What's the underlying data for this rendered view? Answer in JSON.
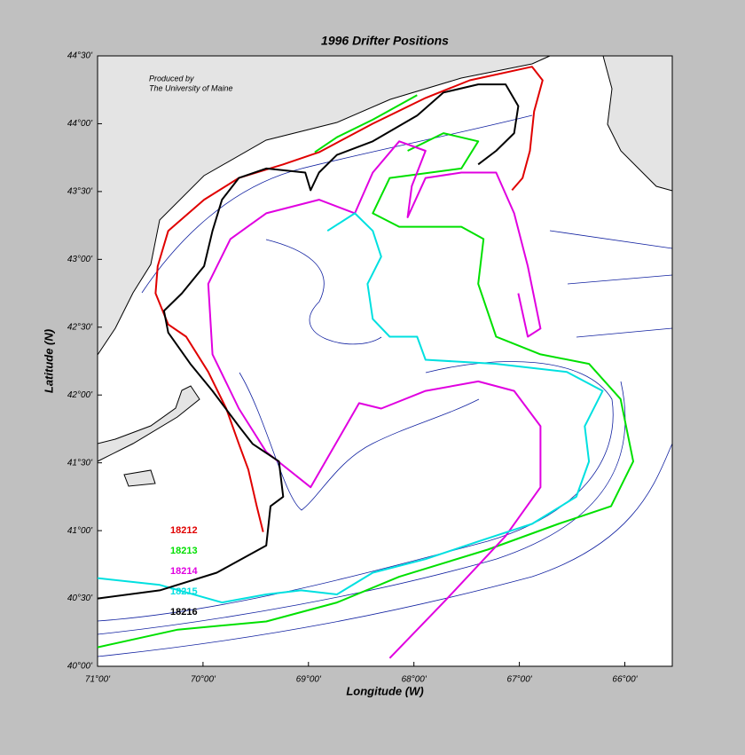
{
  "chart_data": {
    "type": "line",
    "title": "1996 Drifter Positions",
    "x_label": "Longitude (W)",
    "y_label": "Latitude (N)",
    "annotation": [
      "Produced by",
      "The University of Maine"
    ],
    "xlim": [
      71,
      65.55
    ],
    "ylim": [
      40,
      44.5
    ],
    "xticks": [
      {
        "value": 71,
        "label": "71°00'"
      },
      {
        "value": 70,
        "label": "70°00'"
      },
      {
        "value": 69,
        "label": "69°00'"
      },
      {
        "value": 68,
        "label": "68°00'"
      },
      {
        "value": 67,
        "label": "67°00'"
      },
      {
        "value": 66,
        "label": "66°00'"
      }
    ],
    "yticks": [
      {
        "value": 40,
        "label": "40°00'"
      },
      {
        "value": 40.5,
        "label": "40°30'"
      },
      {
        "value": 41,
        "label": "41°00'"
      },
      {
        "value": 41.5,
        "label": "41°30'"
      },
      {
        "value": 42,
        "label": "42°00'"
      },
      {
        "value": 42.5,
        "label": "42°30'"
      },
      {
        "value": 43,
        "label": "43°00'"
      },
      {
        "value": 43.5,
        "label": "43°30'"
      },
      {
        "value": 44,
        "label": "44°00'"
      },
      {
        "value": 44.5,
        "label": "44°30'"
      }
    ],
    "series": [
      {
        "name": "18212",
        "color": "#e00000",
        "x": [
          69.43,
          69.49,
          69.57,
          69.66,
          69.78,
          69.95,
          70.16,
          70.33,
          70.45,
          70.43,
          70.33,
          69.99,
          69.66,
          69.24,
          68.9,
          68.39,
          67.89,
          67.47,
          66.88,
          66.78,
          66.86,
          66.9,
          66.97,
          67.07
        ],
        "values": [
          40.99,
          41.18,
          41.45,
          41.64,
          41.9,
          42.17,
          42.43,
          42.52,
          42.75,
          42.95,
          43.21,
          43.44,
          43.6,
          43.7,
          43.79,
          44.0,
          44.19,
          44.32,
          44.42,
          44.32,
          44.09,
          43.8,
          43.6,
          43.51
        ]
      },
      {
        "name": "18213",
        "color": "#00e000",
        "x": [
          67.97,
          68.39,
          68.73,
          68.94,
          null,
          68.06,
          67.72,
          67.39,
          67.55,
          68.23,
          68.39,
          68.14,
          67.55,
          67.34,
          67.39,
          67.22,
          66.8,
          66.34,
          66.04,
          65.92,
          66.13,
          66.63,
          67.3,
          68.14,
          68.73,
          69.4,
          70.24,
          71.0
        ],
        "values": [
          44.21,
          44.03,
          43.9,
          43.79,
          null,
          43.8,
          43.93,
          43.87,
          43.67,
          43.6,
          43.34,
          43.24,
          43.24,
          43.15,
          42.82,
          42.43,
          42.3,
          42.23,
          41.97,
          41.51,
          41.18,
          41.05,
          40.86,
          40.66,
          40.47,
          40.33,
          40.27,
          40.14
        ]
      },
      {
        "name": "18214",
        "color": "#e000e0",
        "x": [
          68.23,
          67.72,
          67.13,
          66.8,
          66.8,
          67.05,
          67.39,
          67.89,
          68.31,
          68.52,
          68.98,
          69.4,
          69.66,
          69.91,
          69.95,
          69.74,
          69.4,
          68.9,
          68.56,
          68.39,
          68.14,
          67.89,
          68.02,
          68.06,
          67.89,
          67.55,
          67.22,
          67.05,
          66.92,
          66.8,
          66.92,
          67.01
        ],
        "values": [
          40.06,
          40.47,
          40.96,
          41.32,
          41.77,
          42.03,
          42.1,
          42.03,
          41.9,
          41.94,
          41.32,
          41.58,
          41.9,
          42.3,
          42.82,
          43.15,
          43.34,
          43.44,
          43.34,
          43.64,
          43.87,
          43.8,
          43.54,
          43.31,
          43.6,
          43.64,
          43.64,
          43.34,
          42.95,
          42.49,
          42.43,
          42.75
        ]
      },
      {
        "name": "18215",
        "color": "#00e0e0",
        "x": [
          71.0,
          70.41,
          69.82,
          69.4,
          69.07,
          68.73,
          68.39,
          67.89,
          67.39,
          66.88,
          66.46,
          66.34,
          66.38,
          66.21,
          66.55,
          67.22,
          67.89,
          67.97,
          68.23,
          68.39,
          68.44,
          68.31,
          68.39,
          68.56,
          68.82
        ],
        "values": [
          40.65,
          40.6,
          40.47,
          40.53,
          40.56,
          40.53,
          40.69,
          40.79,
          40.92,
          41.05,
          41.25,
          41.51,
          41.77,
          42.03,
          42.17,
          42.23,
          42.26,
          42.43,
          42.43,
          42.56,
          42.82,
          43.02,
          43.21,
          43.34,
          43.21
        ]
      },
      {
        "name": "18216",
        "color": "#000000",
        "x": [
          71.0,
          70.41,
          69.87,
          69.4,
          69.36,
          69.24,
          69.28,
          69.53,
          69.66,
          69.91,
          70.12,
          70.33,
          70.37,
          70.2,
          69.99,
          69.91,
          69.82,
          69.66,
          69.4,
          69.03,
          68.98,
          68.9,
          68.73,
          68.39,
          67.97,
          67.72,
          67.39,
          67.13,
          67.01,
          67.05,
          67.22,
          67.39
        ],
        "values": [
          40.5,
          40.56,
          40.69,
          40.89,
          41.18,
          41.25,
          41.51,
          41.64,
          41.77,
          42.03,
          42.23,
          42.46,
          42.62,
          42.75,
          42.95,
          43.21,
          43.44,
          43.6,
          43.67,
          43.64,
          43.51,
          43.64,
          43.77,
          43.87,
          44.06,
          44.23,
          44.29,
          44.29,
          44.13,
          43.93,
          43.8,
          43.7
        ]
      }
    ]
  }
}
